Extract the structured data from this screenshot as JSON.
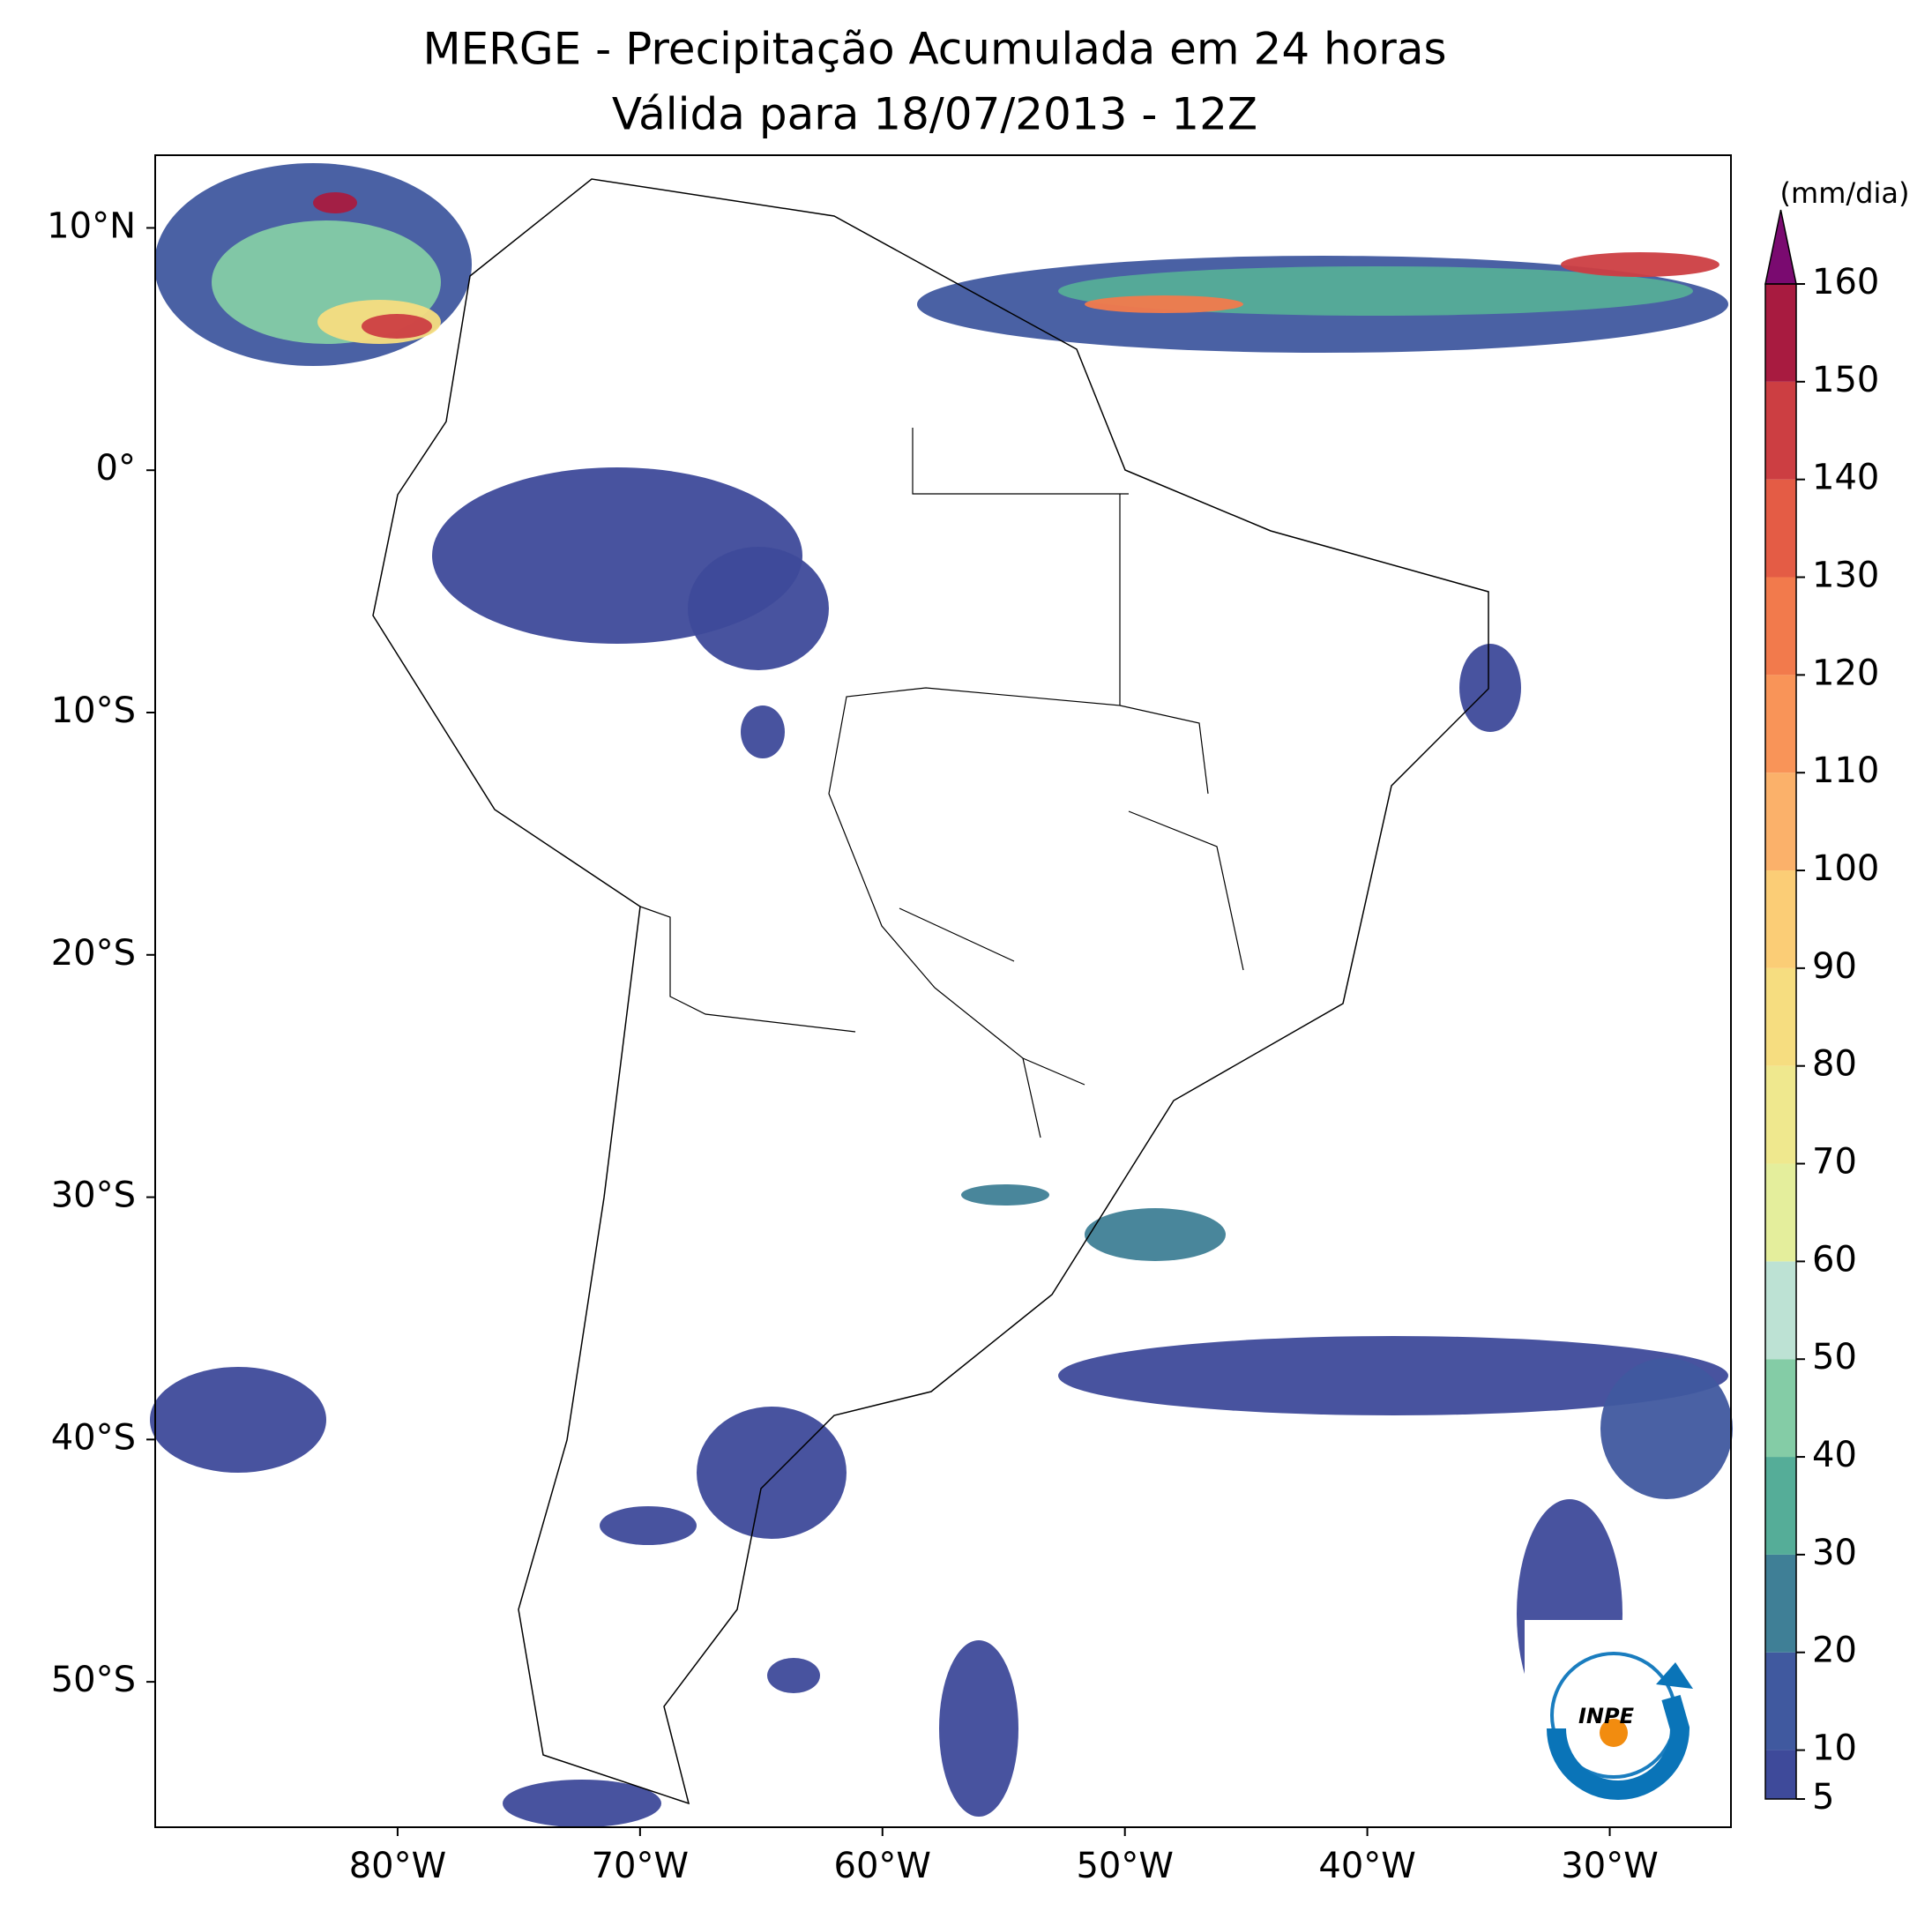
{
  "chart_data": {
    "type": "map",
    "title": "MERGE - Precipitação Acumulada em 24 horas",
    "subtitle": "Válida para 18/07/2013 - 12Z",
    "xlim": [
      -90,
      -25
    ],
    "ylim": [
      -56,
      13
    ],
    "xticks": [
      {
        "value": -80,
        "label": "80°W"
      },
      {
        "value": -70,
        "label": "70°W"
      },
      {
        "value": -60,
        "label": "60°W"
      },
      {
        "value": -50,
        "label": "50°W"
      },
      {
        "value": -40,
        "label": "40°W"
      },
      {
        "value": -30,
        "label": "30°W"
      }
    ],
    "yticks": [
      {
        "value": 10,
        "label": "10°N"
      },
      {
        "value": 0,
        "label": "0°"
      },
      {
        "value": -10,
        "label": "10°S"
      },
      {
        "value": -20,
        "label": "20°S"
      },
      {
        "value": -30,
        "label": "30°S"
      },
      {
        "value": -40,
        "label": "40°S"
      },
      {
        "value": -50,
        "label": "50°S"
      }
    ],
    "colorbar": {
      "label": "(mm/dia)",
      "range": [
        5,
        160
      ],
      "ticks": [
        5,
        10,
        20,
        30,
        40,
        50,
        60,
        70,
        80,
        90,
        100,
        110,
        120,
        130,
        140,
        150,
        160
      ],
      "colors": [
        "#3e4a9a",
        "#40599f",
        "#3f7f96",
        "#55ad98",
        "#84cca6",
        "#bde2d4",
        "#e4ee9c",
        "#efe88e",
        "#f6dd80",
        "#fbcd76",
        "#fbb16a",
        "#f99458",
        "#f27a4c",
        "#e45c45",
        "#cc3e42",
        "#a81b40"
      ],
      "extend_color": "#7a0a70"
    },
    "logo_text": "INPE"
  }
}
